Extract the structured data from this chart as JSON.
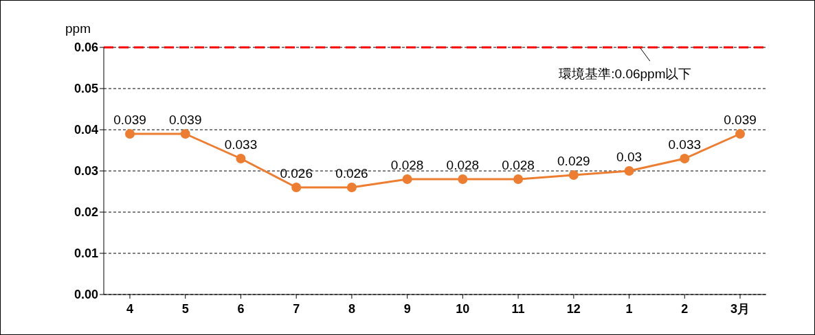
{
  "chart_data": {
    "type": "line",
    "ylabel": "ppm",
    "categories": [
      "4",
      "5",
      "6",
      "7",
      "8",
      "9",
      "10",
      "11",
      "12",
      "1",
      "2",
      "3月"
    ],
    "series": [
      {
        "color": "#ed7d31",
        "values": [
          0.039,
          0.039,
          0.033,
          0.026,
          0.026,
          0.028,
          0.028,
          0.028,
          0.029,
          0.03,
          0.033,
          0.039
        ]
      }
    ],
    "ylim": [
      0,
      0.06
    ],
    "yticks": [
      {
        "value": 0,
        "label": "0.00"
      },
      {
        "value": 0.01,
        "label": "0.01"
      },
      {
        "value": 0.02,
        "label": "0.02"
      },
      {
        "value": 0.03,
        "label": "0.03"
      },
      {
        "value": 0.04,
        "label": "0.04"
      },
      {
        "value": 0.05,
        "label": "0.05"
      },
      {
        "value": 0.06,
        "label": "0.06"
      }
    ],
    "grid": "y",
    "marker": "circle",
    "line_style": "solid",
    "data_labels": true,
    "legend": false,
    "ref_lines": [
      {
        "axis": "y",
        "value": 0.06,
        "label": "環境基準:0.06ppm以下",
        "color": "#ff0000",
        "line_style": "dashed"
      }
    ]
  }
}
